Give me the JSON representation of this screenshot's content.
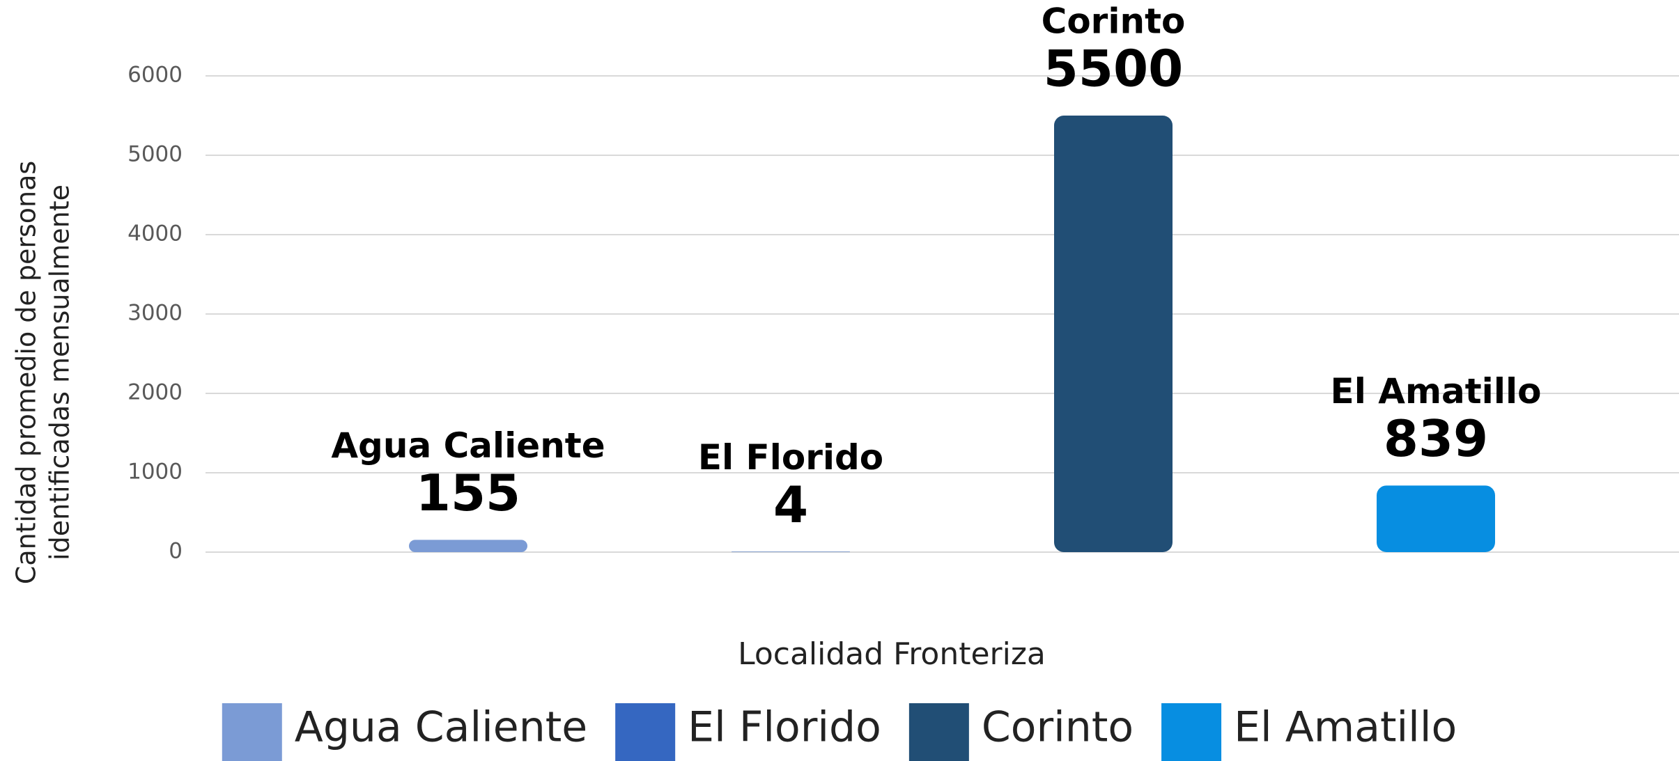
{
  "chart_data": {
    "type": "bar",
    "categories": [
      "Agua Caliente",
      "El Florido",
      "Corinto",
      "El Amatillo"
    ],
    "values": [
      155,
      4,
      5500,
      839
    ],
    "colors": [
      "#7b9bd5",
      "#3567c1",
      "#214e75",
      "#078ee1"
    ],
    "xlabel": "Localidad Fronteriza",
    "ylabel": [
      "Cantidad promedio de personas",
      "identificadas mensualmente"
    ],
    "ylim": [
      0,
      6000
    ],
    "yticks": [
      0,
      1000,
      2000,
      3000,
      4000,
      5000,
      6000
    ],
    "grid": true,
    "legend": "bottom"
  }
}
